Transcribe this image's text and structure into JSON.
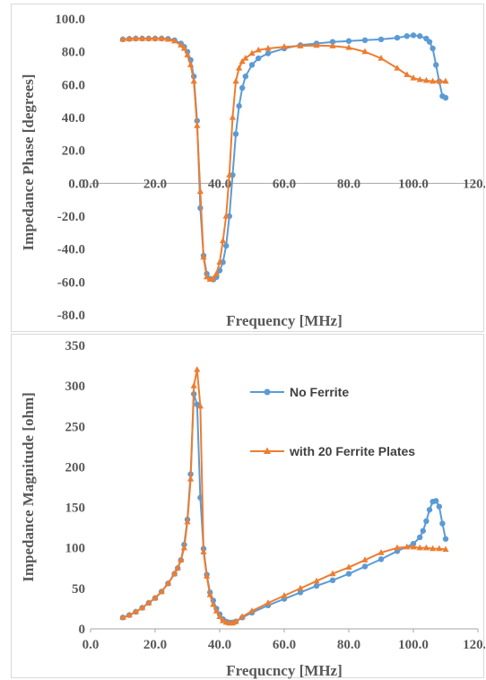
{
  "colors": {
    "no_ferrite": "#5B9BD5",
    "ferrite": "#ED7D31",
    "axis": "#a6a6a6",
    "text": "#595959"
  },
  "chart_data": [
    {
      "type": "line",
      "xlabel": "Frequency [MHz]",
      "ylabel": "Impedance Phase [degrees]",
      "xlim": [
        0,
        120
      ],
      "ylim": [
        -80,
        100
      ],
      "x_ticks": [
        "0.0",
        "20.0",
        "40.0",
        "60.0",
        "80.0",
        "100.0",
        "120.0"
      ],
      "y_ticks": [
        "100.0",
        "80.0",
        "60.0",
        "40.0",
        "20.0",
        "0.0",
        "-20.0",
        "-40.0",
        "-60.0",
        "-80.0"
      ],
      "grid": false,
      "legend": "none",
      "series": [
        {
          "name": "No Ferrite",
          "color": "#5B9BD5",
          "marker": "circle",
          "x": [
            10,
            12,
            14,
            16,
            18,
            20,
            22,
            24,
            26,
            28,
            29,
            30,
            31,
            32,
            33,
            34,
            35,
            36,
            37,
            38,
            39,
            40,
            41,
            42,
            43,
            44,
            45,
            46,
            47,
            48,
            50,
            52,
            55,
            60,
            65,
            70,
            75,
            80,
            85,
            90,
            95,
            98,
            100,
            102,
            104,
            105,
            106,
            107,
            108,
            109,
            110
          ],
          "y": [
            87.5,
            87.8,
            88,
            88,
            88,
            88,
            88,
            87.8,
            87,
            85,
            83,
            80,
            75,
            65,
            38,
            -15,
            -44,
            -55,
            -58,
            -58.5,
            -57,
            -53,
            -48,
            -38,
            -20,
            5,
            30,
            47,
            58,
            65,
            72,
            76,
            79,
            82,
            84,
            85,
            86,
            86.5,
            87,
            87.5,
            88.5,
            89.5,
            90,
            89.5,
            88,
            86,
            82,
            72,
            62,
            53,
            52
          ]
        },
        {
          "name": "with 20 Ferrite Plates",
          "color": "#ED7D31",
          "marker": "triangle",
          "x": [
            10,
            12,
            14,
            16,
            18,
            20,
            22,
            24,
            26,
            28,
            29,
            30,
            31,
            32,
            33,
            34,
            35,
            36,
            37,
            38,
            39,
            40,
            41,
            42,
            43,
            44,
            45,
            46,
            47,
            48,
            50,
            52,
            55,
            60,
            65,
            70,
            75,
            80,
            85,
            90,
            95,
            98,
            100,
            102,
            104,
            106,
            108,
            110
          ],
          "y": [
            87.5,
            87.8,
            88,
            88,
            88,
            88,
            88,
            87.5,
            86.5,
            84,
            82,
            78,
            72,
            62,
            35,
            -5,
            -45,
            -57,
            -58.5,
            -58,
            -55,
            -48,
            -35,
            -20,
            5,
            40,
            62,
            70,
            74,
            76,
            79,
            81,
            82,
            83,
            83.5,
            83.8,
            83.5,
            82.5,
            80,
            76,
            70,
            66,
            64,
            63,
            62.5,
            62,
            62,
            62
          ]
        }
      ]
    },
    {
      "type": "line",
      "xlabel": "Frequcncy [MHz]",
      "ylabel": "Impedance Magnitude [ohm]",
      "xlim": [
        0,
        120
      ],
      "ylim": [
        0,
        350
      ],
      "x_ticks": [
        "0.0",
        "20.0",
        "40.0",
        "60.0",
        "80.0",
        "100.0",
        "120.0"
      ],
      "y_ticks": [
        "350",
        "300",
        "250",
        "200",
        "150",
        "100",
        "50",
        "0"
      ],
      "grid": false,
      "legend": "right, inside plot",
      "series": [
        {
          "name": "No Ferrite",
          "color": "#5B9BD5",
          "marker": "circle",
          "x": [
            10,
            12,
            14,
            16,
            18,
            20,
            22,
            24,
            26,
            27,
            28,
            29,
            30,
            31,
            32,
            33,
            34,
            35,
            36,
            37,
            38,
            39,
            40,
            41,
            42,
            43,
            44,
            45,
            47,
            50,
            55,
            60,
            65,
            70,
            75,
            80,
            85,
            90,
            95,
            100,
            102,
            103,
            104,
            105,
            106,
            107,
            108,
            109,
            110
          ],
          "y": [
            14,
            17,
            21,
            26,
            32,
            38,
            46,
            56,
            68,
            75,
            85,
            104,
            135,
            191,
            290,
            277,
            162,
            99,
            67,
            45,
            35,
            25,
            18,
            12,
            9,
            8,
            8,
            9,
            14,
            20,
            29,
            37,
            45,
            53,
            60,
            68,
            77,
            86,
            96,
            105,
            113,
            121,
            133,
            147,
            157,
            158,
            151,
            130,
            111
          ]
        },
        {
          "name": "with 20 Ferrite Plates",
          "color": "#ED7D31",
          "marker": "triangle",
          "x": [
            10,
            12,
            14,
            16,
            18,
            20,
            22,
            24,
            26,
            27,
            28,
            29,
            30,
            31,
            32,
            33,
            34,
            35,
            36,
            37,
            38,
            39,
            40,
            41,
            42,
            43,
            44,
            45,
            47,
            50,
            55,
            60,
            65,
            70,
            75,
            80,
            85,
            90,
            95,
            98,
            100,
            102,
            104,
            106,
            108,
            110
          ],
          "y": [
            14,
            17,
            21,
            26,
            32,
            38,
            46,
            56,
            68,
            75,
            85,
            100,
            132,
            185,
            300,
            320,
            275,
            95,
            65,
            42,
            30,
            22,
            15,
            10,
            8,
            7,
            7,
            9,
            15,
            22,
            32,
            41,
            50,
            59,
            68,
            76,
            85,
            94,
            100,
            101,
            101,
            100,
            100,
            99,
            99,
            98
          ]
        }
      ]
    }
  ]
}
